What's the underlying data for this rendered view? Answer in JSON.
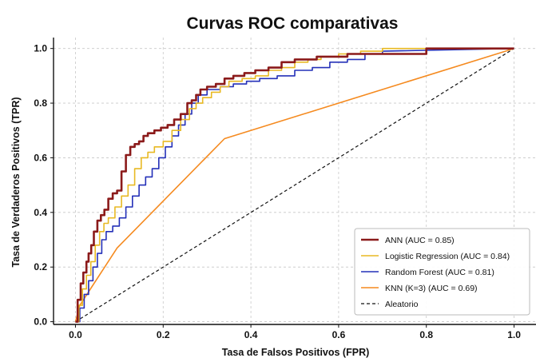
{
  "chart_data": {
    "type": "line",
    "title": "Curvas ROC comparativas",
    "xlabel": "Tasa de Falsos Positivos (FPR)",
    "ylabel": "Tasa de Verdaderos Positivos (TPR)",
    "xlim": [
      -0.05,
      1.05
    ],
    "ylim": [
      -0.01,
      1.04
    ],
    "x_ticks": [
      0.0,
      0.2,
      0.4,
      0.6,
      0.8,
      1.0
    ],
    "x_tick_labels": [
      "0.0",
      "0.2",
      "0.4",
      "0.6",
      "0.8",
      "1.0"
    ],
    "y_ticks": [
      0.0,
      0.2,
      0.4,
      0.6,
      0.8,
      1.0
    ],
    "y_tick_labels": [
      "0.0",
      "0.2",
      "0.4",
      "0.6",
      "0.8",
      "1.0"
    ],
    "grid": true,
    "legend_position": "lower-right",
    "series": [
      {
        "name": "ANN (AUC = 0.85)",
        "color": "#8b1a1a",
        "width": 2.6,
        "x": [
          0.0,
          0.005,
          0.005,
          0.012,
          0.012,
          0.018,
          0.018,
          0.025,
          0.025,
          0.03,
          0.03,
          0.036,
          0.036,
          0.042,
          0.042,
          0.05,
          0.05,
          0.058,
          0.058,
          0.066,
          0.066,
          0.075,
          0.075,
          0.085,
          0.085,
          0.095,
          0.095,
          0.105,
          0.105,
          0.115,
          0.115,
          0.125,
          0.125,
          0.135,
          0.135,
          0.145,
          0.145,
          0.155,
          0.155,
          0.165,
          0.165,
          0.18,
          0.18,
          0.195,
          0.195,
          0.21,
          0.21,
          0.225,
          0.225,
          0.24,
          0.24,
          0.255,
          0.255,
          0.265,
          0.265,
          0.275,
          0.275,
          0.285,
          0.285,
          0.3,
          0.3,
          0.32,
          0.32,
          0.34,
          0.34,
          0.36,
          0.36,
          0.385,
          0.385,
          0.41,
          0.41,
          0.44,
          0.44,
          0.47,
          0.47,
          0.5,
          0.5,
          0.55,
          0.55,
          0.62,
          0.62,
          0.8,
          0.8,
          1.0
        ],
        "y": [
          0.0,
          0.0,
          0.08,
          0.08,
          0.14,
          0.14,
          0.18,
          0.18,
          0.22,
          0.22,
          0.25,
          0.25,
          0.28,
          0.28,
          0.33,
          0.33,
          0.37,
          0.37,
          0.39,
          0.39,
          0.41,
          0.41,
          0.45,
          0.45,
          0.47,
          0.47,
          0.48,
          0.48,
          0.55,
          0.55,
          0.61,
          0.61,
          0.64,
          0.64,
          0.65,
          0.65,
          0.66,
          0.66,
          0.68,
          0.68,
          0.69,
          0.69,
          0.7,
          0.7,
          0.71,
          0.71,
          0.72,
          0.72,
          0.74,
          0.74,
          0.76,
          0.76,
          0.8,
          0.8,
          0.81,
          0.81,
          0.83,
          0.83,
          0.85,
          0.85,
          0.86,
          0.86,
          0.87,
          0.87,
          0.89,
          0.89,
          0.9,
          0.9,
          0.91,
          0.91,
          0.92,
          0.92,
          0.93,
          0.93,
          0.95,
          0.95,
          0.96,
          0.96,
          0.97,
          0.97,
          0.98,
          0.98,
          1.0,
          1.0
        ]
      },
      {
        "name": "Logistic Regression (AUC = 0.84)",
        "color": "#e8b923",
        "width": 1.6,
        "x": [
          0.0,
          0.008,
          0.008,
          0.016,
          0.016,
          0.025,
          0.025,
          0.035,
          0.035,
          0.045,
          0.045,
          0.055,
          0.055,
          0.065,
          0.065,
          0.075,
          0.075,
          0.09,
          0.09,
          0.105,
          0.105,
          0.12,
          0.12,
          0.135,
          0.135,
          0.15,
          0.15,
          0.165,
          0.165,
          0.18,
          0.18,
          0.2,
          0.2,
          0.22,
          0.22,
          0.24,
          0.24,
          0.26,
          0.26,
          0.275,
          0.275,
          0.29,
          0.29,
          0.31,
          0.31,
          0.33,
          0.33,
          0.35,
          0.35,
          0.38,
          0.38,
          0.41,
          0.41,
          0.44,
          0.44,
          0.47,
          0.47,
          0.5,
          0.5,
          0.53,
          0.53,
          0.56,
          0.56,
          0.6,
          0.6,
          0.65,
          0.65,
          0.7,
          0.7,
          1.0
        ],
        "y": [
          0.0,
          0.0,
          0.06,
          0.06,
          0.12,
          0.12,
          0.17,
          0.17,
          0.22,
          0.22,
          0.28,
          0.28,
          0.33,
          0.33,
          0.36,
          0.36,
          0.38,
          0.38,
          0.42,
          0.42,
          0.46,
          0.46,
          0.5,
          0.5,
          0.56,
          0.56,
          0.6,
          0.6,
          0.62,
          0.62,
          0.64,
          0.64,
          0.66,
          0.66,
          0.7,
          0.7,
          0.74,
          0.74,
          0.78,
          0.78,
          0.8,
          0.8,
          0.82,
          0.82,
          0.84,
          0.84,
          0.86,
          0.86,
          0.88,
          0.88,
          0.89,
          0.89,
          0.9,
          0.9,
          0.92,
          0.92,
          0.93,
          0.93,
          0.95,
          0.95,
          0.96,
          0.96,
          0.97,
          0.97,
          0.98,
          0.98,
          0.99,
          0.99,
          1.0,
          1.0
        ]
      },
      {
        "name": "Random Forest (AUC = 0.81)",
        "color": "#2430b8",
        "width": 1.6,
        "x": [
          0.0,
          0.01,
          0.01,
          0.02,
          0.02,
          0.03,
          0.03,
          0.04,
          0.04,
          0.05,
          0.05,
          0.06,
          0.06,
          0.07,
          0.07,
          0.085,
          0.085,
          0.1,
          0.1,
          0.115,
          0.115,
          0.13,
          0.13,
          0.145,
          0.145,
          0.16,
          0.16,
          0.175,
          0.175,
          0.19,
          0.19,
          0.205,
          0.205,
          0.22,
          0.22,
          0.235,
          0.235,
          0.25,
          0.25,
          0.265,
          0.265,
          0.28,
          0.28,
          0.3,
          0.3,
          0.33,
          0.33,
          0.36,
          0.36,
          0.39,
          0.39,
          0.42,
          0.42,
          0.46,
          0.46,
          0.5,
          0.5,
          0.54,
          0.54,
          0.58,
          0.58,
          0.62,
          0.62,
          0.66,
          0.66,
          0.7,
          0.7,
          1.0
        ],
        "y": [
          0.0,
          0.0,
          0.05,
          0.05,
          0.1,
          0.1,
          0.15,
          0.15,
          0.2,
          0.2,
          0.25,
          0.25,
          0.3,
          0.3,
          0.33,
          0.33,
          0.35,
          0.35,
          0.38,
          0.38,
          0.42,
          0.42,
          0.46,
          0.46,
          0.5,
          0.5,
          0.53,
          0.53,
          0.56,
          0.56,
          0.6,
          0.6,
          0.64,
          0.64,
          0.68,
          0.68,
          0.72,
          0.72,
          0.76,
          0.76,
          0.8,
          0.8,
          0.83,
          0.83,
          0.85,
          0.85,
          0.86,
          0.86,
          0.87,
          0.87,
          0.88,
          0.88,
          0.89,
          0.89,
          0.9,
          0.9,
          0.92,
          0.92,
          0.93,
          0.93,
          0.95,
          0.95,
          0.96,
          0.96,
          0.98,
          0.98,
          0.99,
          1.0
        ]
      },
      {
        "name": "KNN (K=3) (AUC = 0.69)",
        "color": "#f58a1f",
        "width": 1.6,
        "x": [
          0.0,
          0.01,
          0.095,
          0.34,
          1.0
        ],
        "y": [
          0.0,
          0.06,
          0.27,
          0.67,
          1.0
        ]
      },
      {
        "name": "Aleatorio",
        "color": "#111111",
        "width": 1.2,
        "dashed": true,
        "x": [
          0.0,
          1.0
        ],
        "y": [
          0.0,
          1.0
        ]
      }
    ]
  }
}
